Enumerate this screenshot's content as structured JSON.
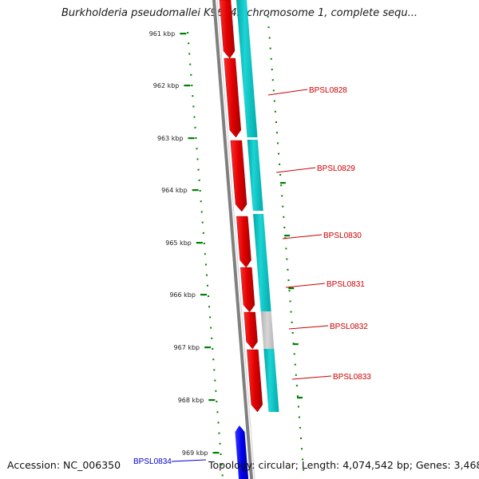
{
  "title": "Burkholderia pseudomallei K96243 chromosome 1, complete sequ...",
  "footer": {
    "accession": "Accession: NC_006350",
    "stats": "Topology: circular; Length: 4,074,542 bp; Genes: 3,468"
  },
  "ticks": [
    "961 kbp",
    "962 kbp",
    "963 kbp",
    "964 kbp",
    "965 kbp",
    "966 kbp",
    "967 kbp",
    "968 kbp",
    "969 kbp"
  ],
  "genes": [
    {
      "label": "BPSL0828",
      "color": "#cc0000"
    },
    {
      "label": "BPSL0829",
      "color": "#cc0000"
    },
    {
      "label": "BPSL0830",
      "color": "#cc0000"
    },
    {
      "label": "BPSL0831",
      "color": "#cc0000"
    },
    {
      "label": "BPSL0832",
      "color": "#cc0000"
    },
    {
      "label": "BPSL0833",
      "color": "#cc0000"
    },
    {
      "label": "BPSL0834",
      "color": "#0000cc"
    }
  ],
  "colors": {
    "backbone": "#808080",
    "forward_cds": "#ff0000",
    "reverse_cds": "#0000ff",
    "orf_track": "#00c8c8",
    "orf_gap": "#c8c8c8",
    "ruler": "#008000"
  }
}
